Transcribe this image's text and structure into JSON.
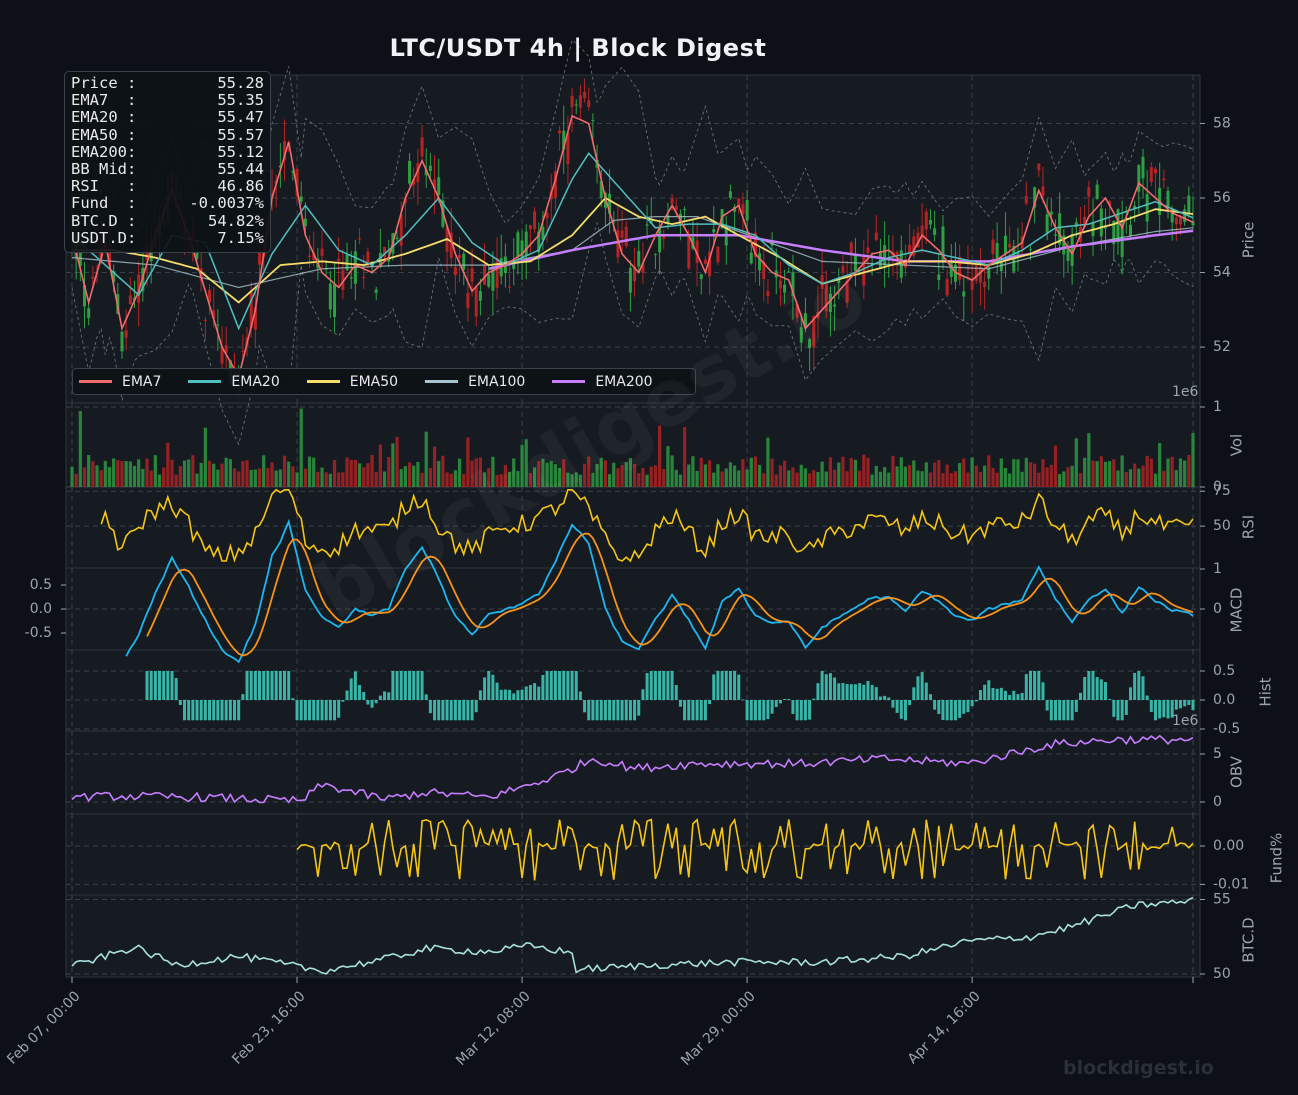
{
  "title": "LTC/USDT  4h  |  Block Digest",
  "watermark": "blockdigest.io",
  "infobox": [
    {
      "label": "Price :",
      "value": "55.28"
    },
    {
      "label": "EMA7  :",
      "value": "55.35"
    },
    {
      "label": "EMA20 :",
      "value": "55.47"
    },
    {
      "label": "EMA50 :",
      "value": "55.57"
    },
    {
      "label": "EMA200:",
      "value": "55.12"
    },
    {
      "label": "BB Mid:",
      "value": "55.44"
    },
    {
      "label": "RSI   :",
      "value": "46.86"
    },
    {
      "label": "Fund  :",
      "value": "-0.0037%"
    },
    {
      "label": "BTC.D :",
      "value": "54.82%"
    },
    {
      "label": "USDT.D:",
      "value": "7.15%"
    }
  ],
  "legend": [
    {
      "name": "EMA7",
      "color": "#f26b6b"
    },
    {
      "name": "EMA20",
      "color": "#4fc0c0"
    },
    {
      "name": "EMA50",
      "color": "#f5dc6b"
    },
    {
      "name": "EMA100",
      "color": "#a9c4cf"
    },
    {
      "name": "EMA200",
      "color": "#c77dff"
    }
  ],
  "chart_data": {
    "type": "line",
    "x_ticks": [
      "Feb 07, 00:00",
      "Feb 23, 16:00",
      "Mar 12, 08:00",
      "Mar 29, 00:00",
      "Apr 14, 16:00"
    ],
    "panels": [
      {
        "id": "price",
        "ylabel": "Price",
        "ylim": [
          50.5,
          59.3
        ],
        "yticks": [
          "52",
          "54",
          "56",
          "58"
        ],
        "ema7_points": [
          [
            0,
            55.0
          ],
          [
            4,
            53.2
          ],
          [
            8,
            54.8
          ],
          [
            12,
            52.5
          ],
          [
            16,
            53.5
          ],
          [
            20,
            55.0
          ],
          [
            24,
            56.2
          ],
          [
            28,
            55.0
          ],
          [
            32,
            53.5
          ],
          [
            36,
            52.0
          ],
          [
            40,
            51.2
          ],
          [
            44,
            53.0
          ],
          [
            48,
            56.0
          ],
          [
            52,
            57.5
          ],
          [
            56,
            55.0
          ],
          [
            60,
            54.0
          ],
          [
            64,
            53.6
          ],
          [
            68,
            54.2
          ],
          [
            72,
            54.0
          ],
          [
            76,
            54.4
          ],
          [
            80,
            56.0
          ],
          [
            84,
            57.0
          ],
          [
            88,
            56.0
          ],
          [
            92,
            54.5
          ],
          [
            96,
            53.5
          ],
          [
            100,
            54.0
          ],
          [
            104,
            54.2
          ],
          [
            108,
            54.5
          ],
          [
            112,
            55.0
          ],
          [
            116,
            56.5
          ],
          [
            120,
            58.2
          ],
          [
            124,
            58.0
          ],
          [
            128,
            56.0
          ],
          [
            132,
            54.5
          ],
          [
            136,
            54.0
          ],
          [
            140,
            55.0
          ],
          [
            144,
            55.8
          ],
          [
            148,
            55.0
          ],
          [
            152,
            54.0
          ],
          [
            156,
            55.5
          ],
          [
            160,
            55.8
          ],
          [
            164,
            54.5
          ],
          [
            168,
            54.0
          ],
          [
            172,
            53.8
          ],
          [
            176,
            52.5
          ],
          [
            180,
            53.0
          ],
          [
            184,
            53.5
          ],
          [
            188,
            54.0
          ],
          [
            192,
            54.5
          ],
          [
            196,
            54.6
          ],
          [
            200,
            54.2
          ],
          [
            204,
            55.0
          ],
          [
            208,
            54.6
          ],
          [
            212,
            54.0
          ],
          [
            216,
            53.8
          ],
          [
            220,
            54.2
          ],
          [
            224,
            54.5
          ],
          [
            228,
            54.8
          ],
          [
            232,
            56.2
          ],
          [
            236,
            55.2
          ],
          [
            240,
            54.5
          ],
          [
            244,
            55.5
          ],
          [
            248,
            56.0
          ],
          [
            252,
            55.2
          ],
          [
            256,
            56.4
          ],
          [
            260,
            56.0
          ],
          [
            264,
            55.6
          ],
          [
            268,
            55.4
          ],
          [
            269,
            55.35
          ]
        ],
        "ema20_points": [
          [
            0,
            55.0
          ],
          [
            8,
            54.2
          ],
          [
            16,
            53.4
          ],
          [
            24,
            55.0
          ],
          [
            32,
            54.8
          ],
          [
            40,
            52.5
          ],
          [
            48,
            54.5
          ],
          [
            56,
            55.8
          ],
          [
            64,
            54.6
          ],
          [
            72,
            54.2
          ],
          [
            80,
            55.0
          ],
          [
            88,
            56.0
          ],
          [
            96,
            54.8
          ],
          [
            104,
            54.2
          ],
          [
            112,
            54.6
          ],
          [
            120,
            56.5
          ],
          [
            124,
            57.2
          ],
          [
            132,
            56.2
          ],
          [
            140,
            55.2
          ],
          [
            148,
            55.3
          ],
          [
            156,
            55.3
          ],
          [
            164,
            55.0
          ],
          [
            172,
            54.2
          ],
          [
            180,
            53.7
          ],
          [
            188,
            54.0
          ],
          [
            196,
            54.4
          ],
          [
            204,
            54.6
          ],
          [
            212,
            54.4
          ],
          [
            220,
            54.2
          ],
          [
            228,
            54.6
          ],
          [
            236,
            55.2
          ],
          [
            244,
            55.3
          ],
          [
            252,
            55.6
          ],
          [
            260,
            55.9
          ],
          [
            269,
            55.47
          ]
        ],
        "ema50_points": [
          [
            0,
            54.6
          ],
          [
            10,
            54.6
          ],
          [
            20,
            54.4
          ],
          [
            30,
            54.1
          ],
          [
            40,
            53.2
          ],
          [
            50,
            54.2
          ],
          [
            60,
            54.3
          ],
          [
            70,
            54.2
          ],
          [
            80,
            54.5
          ],
          [
            90,
            54.9
          ],
          [
            100,
            54.2
          ],
          [
            110,
            54.3
          ],
          [
            120,
            55.0
          ],
          [
            128,
            56.0
          ],
          [
            136,
            55.5
          ],
          [
            144,
            55.3
          ],
          [
            152,
            55.5
          ],
          [
            160,
            55.0
          ],
          [
            170,
            54.4
          ],
          [
            180,
            53.7
          ],
          [
            190,
            54.0
          ],
          [
            200,
            54.3
          ],
          [
            210,
            54.3
          ],
          [
            220,
            54.2
          ],
          [
            230,
            54.5
          ],
          [
            240,
            55.0
          ],
          [
            250,
            55.3
          ],
          [
            260,
            55.7
          ],
          [
            269,
            55.57
          ]
        ],
        "ema100_points": [
          [
            0,
            54.4
          ],
          [
            20,
            54.2
          ],
          [
            40,
            53.6
          ],
          [
            60,
            54.1
          ],
          [
            80,
            54.2
          ],
          [
            100,
            54.2
          ],
          [
            120,
            54.6
          ],
          [
            130,
            55.4
          ],
          [
            140,
            55.5
          ],
          [
            150,
            55.5
          ],
          [
            160,
            55.1
          ],
          [
            180,
            54.3
          ],
          [
            200,
            54.2
          ],
          [
            220,
            54.1
          ],
          [
            240,
            54.7
          ],
          [
            260,
            55.1
          ],
          [
            269,
            55.2
          ]
        ],
        "ema200_points": [
          [
            100,
            54.1
          ],
          [
            120,
            54.6
          ],
          [
            140,
            55.0
          ],
          [
            160,
            55.0
          ],
          [
            180,
            54.6
          ],
          [
            200,
            54.3
          ],
          [
            220,
            54.3
          ],
          [
            240,
            54.7
          ],
          [
            260,
            55.0
          ],
          [
            269,
            55.12
          ]
        ]
      },
      {
        "id": "vol",
        "ylabel": "Vol",
        "scale_label": "1e6",
        "yticks": [
          "0",
          "1"
        ]
      },
      {
        "id": "rsi",
        "ylabel": "RSI",
        "yticks": [
          "50",
          "75"
        ]
      },
      {
        "id": "macd",
        "ylabel": "MACD",
        "yticks_left": [
          "0.5",
          "0.0",
          "-0.5"
        ],
        "yticks_right": [
          "0",
          "1"
        ]
      },
      {
        "id": "hist",
        "ylabel": "Hist",
        "scale_label": "1e6",
        "yticks": [
          "0.5",
          "0.0",
          "-0.5"
        ]
      },
      {
        "id": "obv",
        "ylabel": "OBV",
        "yticks": [
          "0",
          "5"
        ]
      },
      {
        "id": "fund",
        "ylabel": "Fund%",
        "yticks": [
          "0.00",
          "-0.01"
        ]
      },
      {
        "id": "btcd",
        "ylabel": "BTC.D",
        "yticks": [
          "50",
          "55"
        ],
        "ylim": [
          49.8,
          55.3
        ]
      }
    ]
  }
}
